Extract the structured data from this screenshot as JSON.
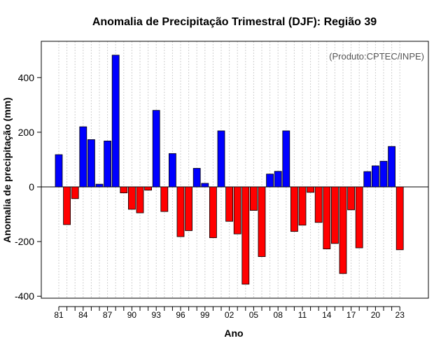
{
  "chart_data": {
    "type": "bar",
    "title": "Anomalia de Precipitação Trimestral (DJF): Região 39",
    "xlabel": "Ano",
    "ylabel": "Anomalia de precipitação (mm)",
    "credit": "(Produto:CPTEC/INPE)",
    "ylim": [
      -410,
      520
    ],
    "yticks": [
      -400,
      -200,
      0,
      200,
      400
    ],
    "grid": true,
    "positive_color": "#0000ff",
    "negative_color": "#ff0000",
    "categories": [
      "81",
      "82",
      "83",
      "84",
      "85",
      "86",
      "87",
      "88",
      "89",
      "90",
      "91",
      "92",
      "93",
      "94",
      "95",
      "96",
      "97",
      "98",
      "99",
      "00",
      "01",
      "02",
      "03",
      "04",
      "05",
      "06",
      "07",
      "08",
      "09",
      "10",
      "11",
      "12",
      "13",
      "14",
      "15",
      "16",
      "17",
      "18",
      "19",
      "20",
      "21",
      "22",
      "23"
    ],
    "tick_labels": [
      "81",
      "84",
      "87",
      "90",
      "93",
      "96",
      "99",
      "02",
      "05",
      "08",
      "11",
      "14",
      "17",
      "20",
      "23"
    ],
    "values": [
      118,
      -138,
      -43,
      220,
      173,
      10,
      168,
      482,
      -22,
      -82,
      -95,
      -12,
      280,
      -90,
      122,
      -182,
      -160,
      68,
      13,
      -186,
      205,
      -126,
      -172,
      -356,
      -86,
      -255,
      47,
      57,
      205,
      -163,
      -140,
      -20,
      -130,
      -227,
      -207,
      -317,
      -84,
      -223,
      56,
      77,
      94,
      148,
      -230
    ]
  }
}
